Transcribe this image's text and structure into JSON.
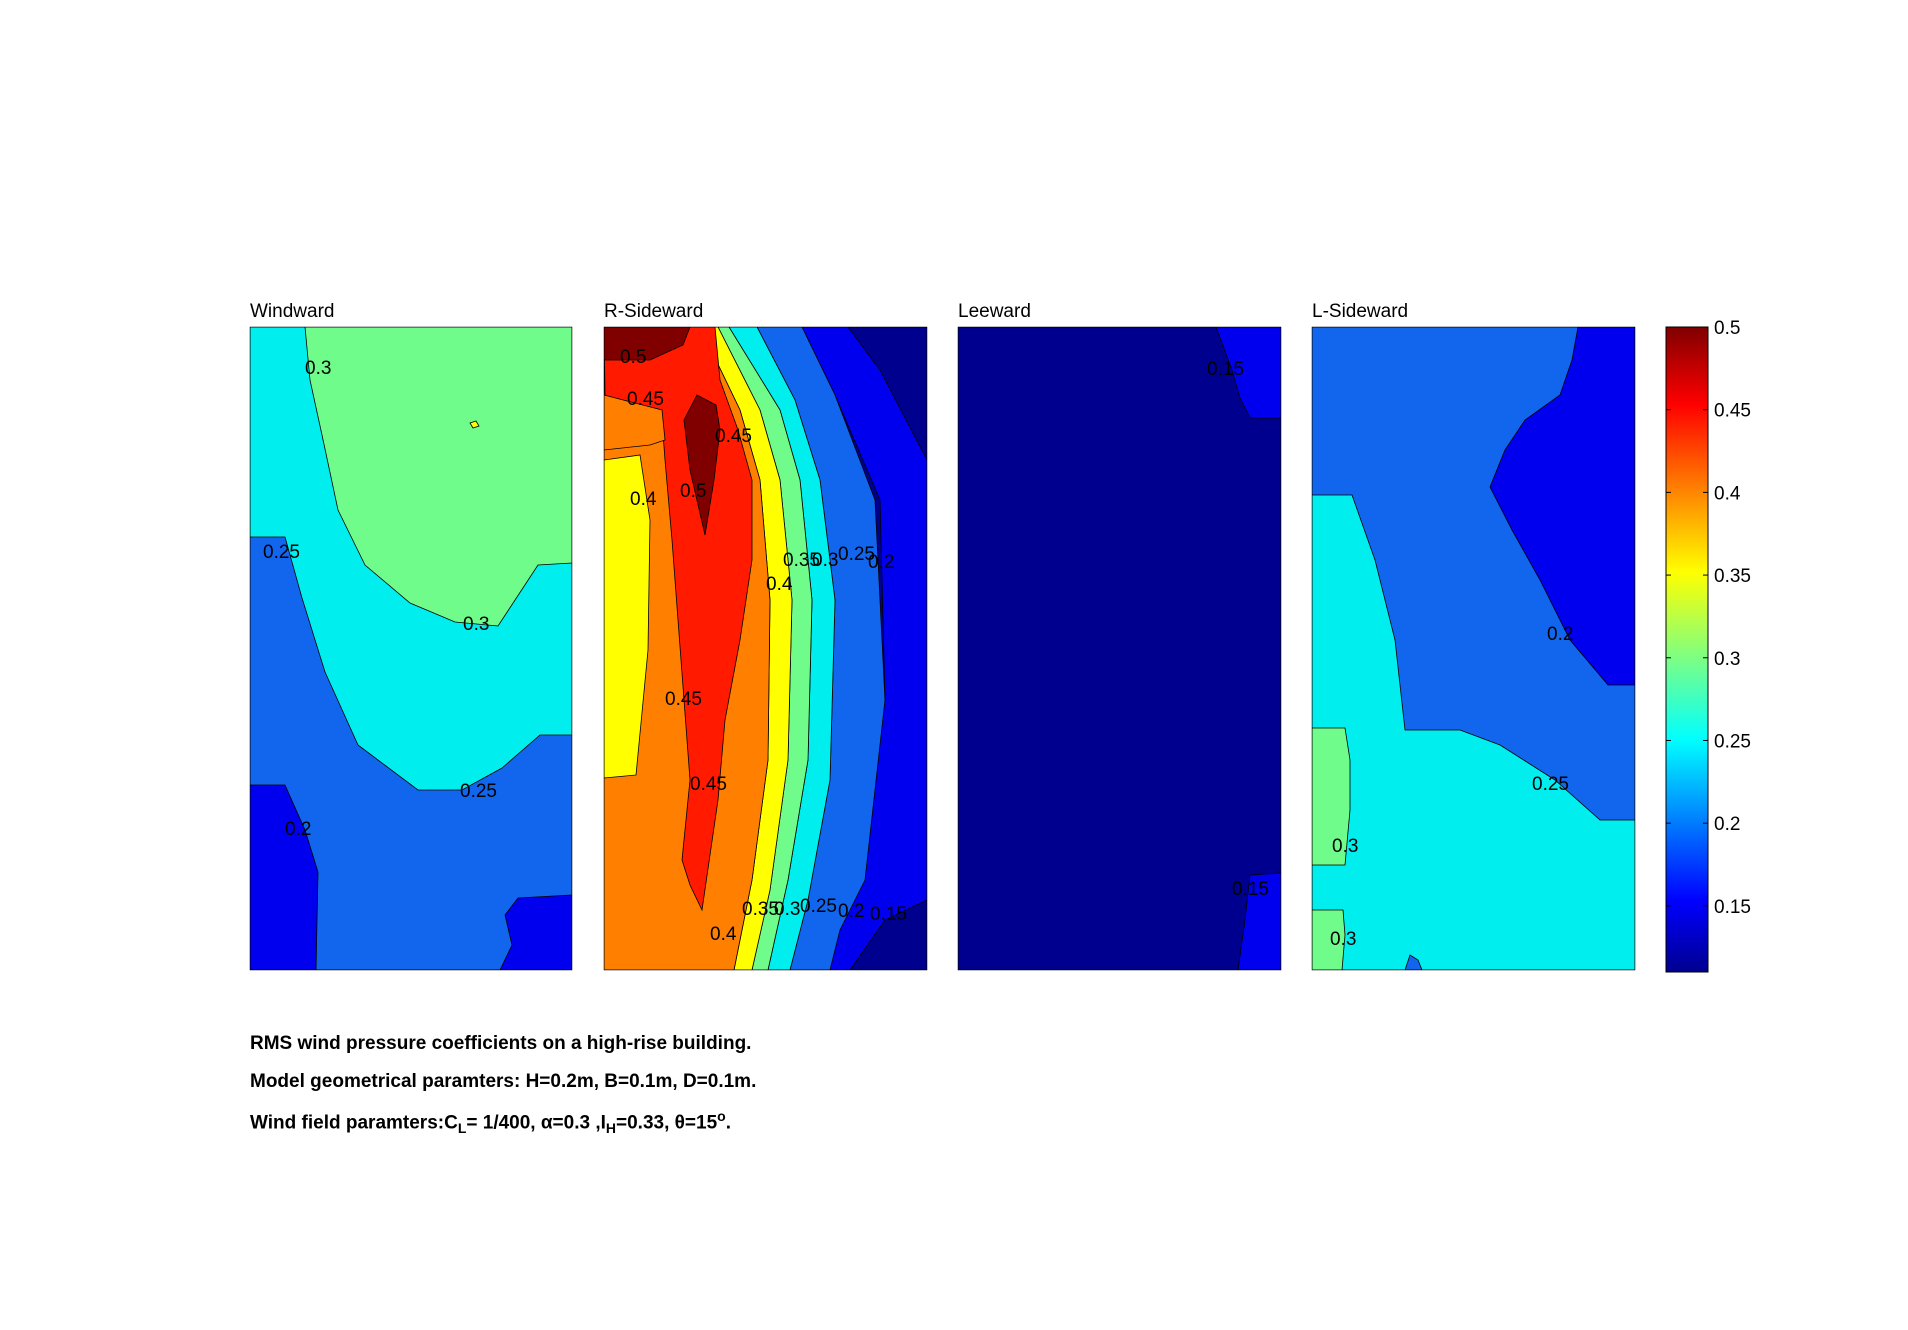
{
  "colors": {
    "c015": "#0000b8",
    "c015b": "#0000ee",
    "c020": "#1266ee",
    "c025": "#00eeee",
    "c030": "#70fc8a",
    "c035": "#ffff00",
    "c040": "#ff8000",
    "c045": "#ff1a00",
    "c050": "#800000",
    "background": "#00008f"
  },
  "chart_data": {
    "type": "contour",
    "colormap": "jet",
    "clim": [
      0.11,
      0.5
    ],
    "levels": [
      0.15,
      0.2,
      0.25,
      0.3,
      0.35,
      0.4,
      0.45,
      0.5
    ],
    "colorbar": {
      "ticks": [
        0.5,
        0.45,
        0.4,
        0.35,
        0.3,
        0.25,
        0.2,
        0.15
      ],
      "tick_labels": [
        "0.5",
        "0.45",
        "0.4",
        "0.35",
        "0.3",
        "0.25",
        "0.2",
        "0.15"
      ]
    },
    "panels": [
      {
        "title": "Windward",
        "contour_labels": [
          "0.3",
          "0.25",
          "0.3",
          "0.25",
          "0.2"
        ]
      },
      {
        "title": "R-Sideward",
        "contour_labels": [
          "0.5",
          "0.45",
          "0.45",
          "0.5",
          "0.4",
          "0.35",
          "0.3",
          "0.25",
          "0.2",
          "0.4",
          "0.45",
          "0.45",
          "0.4",
          "0.35",
          "0.3",
          "0.25",
          "0.2",
          "0.15"
        ]
      },
      {
        "title": "Leeward",
        "contour_labels": [
          "0.15",
          "0.15"
        ]
      },
      {
        "title": "L-Sideward",
        "contour_labels": [
          "0.2",
          "0.25",
          "0.3",
          "0.3"
        ]
      }
    ]
  },
  "caption": {
    "line1": "RMS wind pressure coefficients on a high-rise building.",
    "line2": "Model geometrical paramters: H=0.2m, B=0.1m, D=0.1m.",
    "line3_prefix": "Wind field paramters:C",
    "line3_cl_sub": "L",
    "line3_mid1": "= 1/400, ",
    "line3_alpha": "α=0.3 ,I",
    "line3_ih_sub": "H",
    "line3_mid2": "=0.33, θ=15",
    "line3_deg": "o",
    "line3_end": "."
  }
}
